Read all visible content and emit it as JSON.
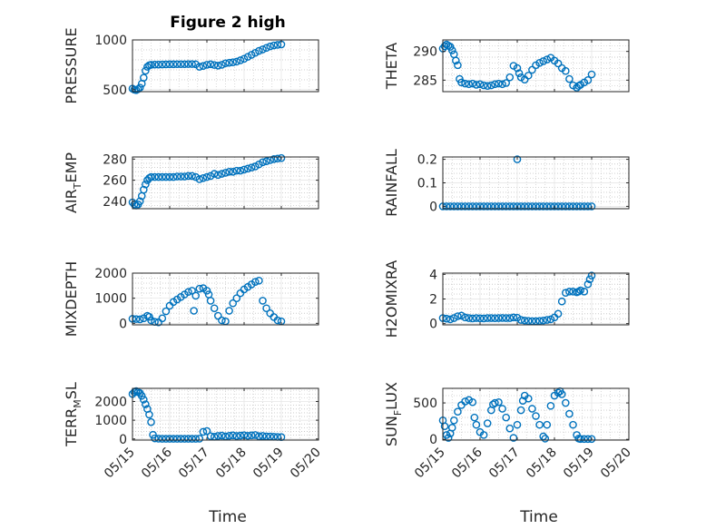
{
  "figure_title": "Figure 2 high",
  "colors": {
    "marker": "#0072BD",
    "axis": "#262626"
  },
  "x_axis": {
    "label": "Time",
    "tick_labels": [
      "05/15",
      "05/16",
      "05/17",
      "05/18",
      "05/19",
      "05/20"
    ]
  },
  "chart_data": [
    {
      "type": "scatter",
      "marker": "circle",
      "title": "Figure 2 high",
      "ylabel": "PRESSURE",
      "ylim": [
        480,
        1000
      ],
      "yticks": [
        500,
        1000
      ],
      "grid": true,
      "xlim": [
        0,
        5
      ],
      "series": [
        {
          "x": [
            0.0,
            0.05,
            0.1,
            0.15,
            0.2,
            0.25,
            0.3,
            0.35,
            0.4,
            0.45,
            0.5,
            0.6,
            0.7,
            0.8,
            0.9,
            1.0,
            1.1,
            1.2,
            1.3,
            1.4,
            1.5,
            1.6,
            1.7,
            1.8,
            1.9,
            2.0,
            2.1,
            2.2,
            2.3,
            2.4,
            2.5,
            2.6,
            2.7,
            2.8,
            2.9,
            3.0,
            3.1,
            3.2,
            3.3,
            3.4,
            3.5,
            3.6,
            3.7,
            3.8,
            3.9,
            4.0
          ],
          "y": [
            510,
            500,
            495,
            505,
            520,
            560,
            620,
            690,
            730,
            745,
            750,
            752,
            752,
            753,
            754,
            755,
            755,
            756,
            756,
            756,
            757,
            757,
            755,
            730,
            738,
            750,
            755,
            748,
            742,
            750,
            765,
            770,
            775,
            782,
            795,
            810,
            830,
            850,
            870,
            890,
            905,
            920,
            935,
            945,
            950,
            955
          ]
        }
      ]
    },
    {
      "type": "scatter",
      "marker": "circle",
      "ylabel": "THETA",
      "ylim": [
        283,
        292
      ],
      "yticks": [
        285,
        290
      ],
      "grid": true,
      "xlim": [
        0,
        5
      ],
      "series": [
        {
          "x": [
            0.0,
            0.05,
            0.1,
            0.15,
            0.2,
            0.25,
            0.3,
            0.35,
            0.4,
            0.45,
            0.5,
            0.6,
            0.7,
            0.8,
            0.9,
            1.0,
            1.1,
            1.2,
            1.3,
            1.4,
            1.5,
            1.6,
            1.7,
            1.8,
            1.9,
            2.0,
            2.05,
            2.1,
            2.2,
            2.3,
            2.4,
            2.5,
            2.6,
            2.7,
            2.8,
            2.9,
            3.0,
            3.1,
            3.2,
            3.3,
            3.4,
            3.5,
            3.6,
            3.65,
            3.7,
            3.8,
            3.9,
            4.0
          ],
          "y": [
            290.5,
            290.9,
            291.2,
            291,
            290.8,
            290.2,
            289.5,
            288.4,
            287.6,
            285.2,
            284.6,
            284.4,
            284.3,
            284.4,
            284.2,
            284.3,
            284.1,
            284.0,
            284.1,
            284.3,
            284.4,
            284.3,
            284.5,
            285.5,
            287.5,
            287.1,
            286.2,
            285.5,
            285.1,
            285.8,
            286.8,
            287.6,
            288.0,
            288.3,
            288.6,
            288.9,
            288.4,
            287.9,
            287.1,
            286.6,
            285.2,
            284.1,
            283.7,
            284.0,
            284.2,
            284.6,
            285.0,
            286.0
          ]
        }
      ]
    },
    {
      "type": "scatter",
      "marker": "circle",
      "ylabel": "AIR_TEMP",
      "ylim": [
        233,
        282
      ],
      "yticks": [
        240,
        260,
        280
      ],
      "grid": true,
      "xlim": [
        0,
        5
      ],
      "series": [
        {
          "x": [
            0.0,
            0.05,
            0.1,
            0.15,
            0.2,
            0.25,
            0.3,
            0.35,
            0.4,
            0.45,
            0.5,
            0.6,
            0.7,
            0.8,
            0.9,
            1.0,
            1.1,
            1.2,
            1.3,
            1.4,
            1.5,
            1.6,
            1.7,
            1.8,
            1.9,
            2.0,
            2.1,
            2.2,
            2.3,
            2.4,
            2.5,
            2.6,
            2.7,
            2.8,
            2.9,
            3.0,
            3.1,
            3.2,
            3.3,
            3.4,
            3.5,
            3.6,
            3.7,
            3.8,
            3.9,
            4.0
          ],
          "y": [
            239,
            237,
            236,
            237,
            240,
            245,
            251,
            256,
            260,
            262,
            263,
            263,
            263,
            263,
            263,
            263,
            263,
            263.5,
            263.5,
            263.5,
            264,
            264,
            263,
            261,
            262,
            263,
            264,
            266,
            265,
            266,
            267,
            268,
            268,
            269,
            269,
            270,
            271,
            272,
            273,
            275,
            277,
            278,
            279,
            280,
            280.5,
            281
          ]
        }
      ]
    },
    {
      "type": "scatter",
      "marker": "circle",
      "ylabel": "RAINFALL",
      "ylim": [
        -0.01,
        0.21
      ],
      "yticks": [
        0,
        0.1,
        0.2
      ],
      "ytick_labels": [
        "0",
        "0.1",
        "0.2"
      ],
      "grid": true,
      "xlim": [
        0,
        5
      ],
      "series": [
        {
          "x": [
            0.0,
            0.1,
            0.2,
            0.3,
            0.4,
            0.5,
            0.6,
            0.7,
            0.8,
            0.9,
            1.0,
            1.1,
            1.2,
            1.3,
            1.4,
            1.5,
            1.6,
            1.7,
            1.8,
            1.9,
            2.0,
            2.1,
            2.2,
            2.3,
            2.4,
            2.5,
            2.6,
            2.7,
            2.8,
            2.9,
            3.0,
            3.1,
            3.2,
            3.3,
            3.4,
            3.5,
            3.6,
            3.7,
            3.8,
            3.9,
            4.0,
            2.0
          ],
          "y": [
            0,
            0,
            0,
            0,
            0,
            0,
            0,
            0,
            0,
            0,
            0,
            0,
            0,
            0,
            0,
            0,
            0,
            0,
            0,
            0,
            0,
            0,
            0,
            0,
            0,
            0,
            0,
            0,
            0,
            0,
            0,
            0,
            0,
            0,
            0,
            0,
            0,
            0,
            0,
            0,
            0,
            0.2
          ]
        }
      ]
    },
    {
      "type": "scatter",
      "marker": "circle",
      "ylabel": "MIXDEPTH",
      "ylim": [
        -60,
        2000
      ],
      "yticks": [
        0,
        1000,
        2000
      ],
      "grid": true,
      "xlim": [
        0,
        5
      ],
      "series": [
        {
          "x": [
            0.0,
            0.1,
            0.2,
            0.3,
            0.4,
            0.45,
            0.5,
            0.6,
            0.7,
            0.8,
            0.9,
            1.0,
            1.1,
            1.2,
            1.3,
            1.4,
            1.5,
            1.6,
            1.65,
            1.7,
            1.8,
            1.9,
            2.0,
            2.05,
            2.1,
            2.2,
            2.3,
            2.4,
            2.5,
            2.6,
            2.7,
            2.8,
            2.9,
            3.0,
            3.1,
            3.2,
            3.3,
            3.4,
            3.5,
            3.6,
            3.7,
            3.8,
            3.9,
            4.0
          ],
          "y": [
            180,
            170,
            160,
            200,
            300,
            260,
            120,
            60,
            40,
            200,
            480,
            700,
            850,
            950,
            1050,
            1150,
            1250,
            1300,
            500,
            1100,
            1380,
            1400,
            1300,
            1150,
            900,
            600,
            300,
            120,
            80,
            500,
            800,
            1000,
            1200,
            1350,
            1450,
            1550,
            1650,
            1700,
            900,
            600,
            400,
            250,
            120,
            80
          ]
        }
      ]
    },
    {
      "type": "scatter",
      "marker": "circle",
      "ylabel": "H2OMIXRA",
      "ylim": [
        -0.1,
        4.1
      ],
      "yticks": [
        0,
        2,
        4
      ],
      "grid": true,
      "xlim": [
        0,
        5
      ],
      "series": [
        {
          "x": [
            0.0,
            0.1,
            0.2,
            0.3,
            0.4,
            0.5,
            0.6,
            0.7,
            0.8,
            0.9,
            1.0,
            1.1,
            1.2,
            1.3,
            1.4,
            1.5,
            1.6,
            1.7,
            1.8,
            1.9,
            2.0,
            2.1,
            2.2,
            2.3,
            2.4,
            2.5,
            2.6,
            2.7,
            2.8,
            2.9,
            3.0,
            3.1,
            3.2,
            3.3,
            3.4,
            3.5,
            3.6,
            3.65,
            3.7,
            3.8,
            3.9,
            3.95,
            4.0
          ],
          "y": [
            0.45,
            0.4,
            0.35,
            0.45,
            0.6,
            0.65,
            0.5,
            0.45,
            0.42,
            0.45,
            0.43,
            0.42,
            0.45,
            0.45,
            0.44,
            0.45,
            0.46,
            0.45,
            0.45,
            0.5,
            0.48,
            0.3,
            0.25,
            0.22,
            0.2,
            0.2,
            0.22,
            0.25,
            0.3,
            0.35,
            0.5,
            0.8,
            1.8,
            2.5,
            2.6,
            2.6,
            2.55,
            2.6,
            2.7,
            2.6,
            3.2,
            3.6,
            3.9
          ]
        }
      ]
    },
    {
      "type": "scatter",
      "marker": "circle",
      "ylabel": "TERR_MSL",
      "ylim": [
        -60,
        2700
      ],
      "yticks": [
        0,
        1000,
        2000
      ],
      "grid": true,
      "xlim": [
        0,
        5
      ],
      "series": [
        {
          "x": [
            0.0,
            0.05,
            0.1,
            0.15,
            0.2,
            0.25,
            0.3,
            0.35,
            0.4,
            0.45,
            0.5,
            0.55,
            0.6,
            0.7,
            0.8,
            0.9,
            1.0,
            1.1,
            1.2,
            1.3,
            1.4,
            1.5,
            1.6,
            1.7,
            1.8,
            1.9,
            2.0,
            2.1,
            2.2,
            2.3,
            2.4,
            2.5,
            2.6,
            2.7,
            2.8,
            2.9,
            3.0,
            3.1,
            3.2,
            3.3,
            3.4,
            3.5,
            3.6,
            3.7,
            3.8,
            3.9,
            4.0
          ],
          "y": [
            2400,
            2500,
            2550,
            2500,
            2450,
            2300,
            2100,
            1850,
            1600,
            1300,
            900,
            220,
            30,
            15,
            10,
            8,
            8,
            8,
            8,
            8,
            8,
            8,
            8,
            10,
            15,
            380,
            420,
            150,
            120,
            160,
            180,
            140,
            170,
            190,
            160,
            180,
            200,
            170,
            190,
            210,
            150,
            160,
            140,
            130,
            120,
            110,
            100
          ]
        }
      ]
    },
    {
      "type": "scatter",
      "marker": "circle",
      "ylabel": "SUN_FLUX",
      "ylim": [
        -10,
        700
      ],
      "yticks": [
        0,
        500
      ],
      "grid": true,
      "xlim": [
        0,
        5
      ],
      "series": [
        {
          "x": [
            0.0,
            0.05,
            0.1,
            0.15,
            0.2,
            0.25,
            0.3,
            0.4,
            0.5,
            0.6,
            0.7,
            0.8,
            0.85,
            0.9,
            1.0,
            1.1,
            1.2,
            1.3,
            1.35,
            1.4,
            1.5,
            1.6,
            1.7,
            1.8,
            1.9,
            2.0,
            2.1,
            2.15,
            2.2,
            2.3,
            2.4,
            2.5,
            2.6,
            2.7,
            2.75,
            2.8,
            2.9,
            3.0,
            3.1,
            3.15,
            3.2,
            3.3,
            3.4,
            3.5,
            3.6,
            3.65,
            3.7,
            3.8,
            3.9,
            4.0
          ],
          "y": [
            260,
            180,
            60,
            20,
            80,
            160,
            260,
            380,
            470,
            520,
            540,
            510,
            300,
            200,
            100,
            60,
            220,
            400,
            480,
            500,
            510,
            420,
            300,
            150,
            20,
            200,
            400,
            530,
            600,
            560,
            420,
            320,
            200,
            40,
            10,
            200,
            460,
            600,
            640,
            660,
            620,
            500,
            350,
            200,
            60,
            10,
            5,
            5,
            5,
            5
          ]
        }
      ]
    }
  ]
}
